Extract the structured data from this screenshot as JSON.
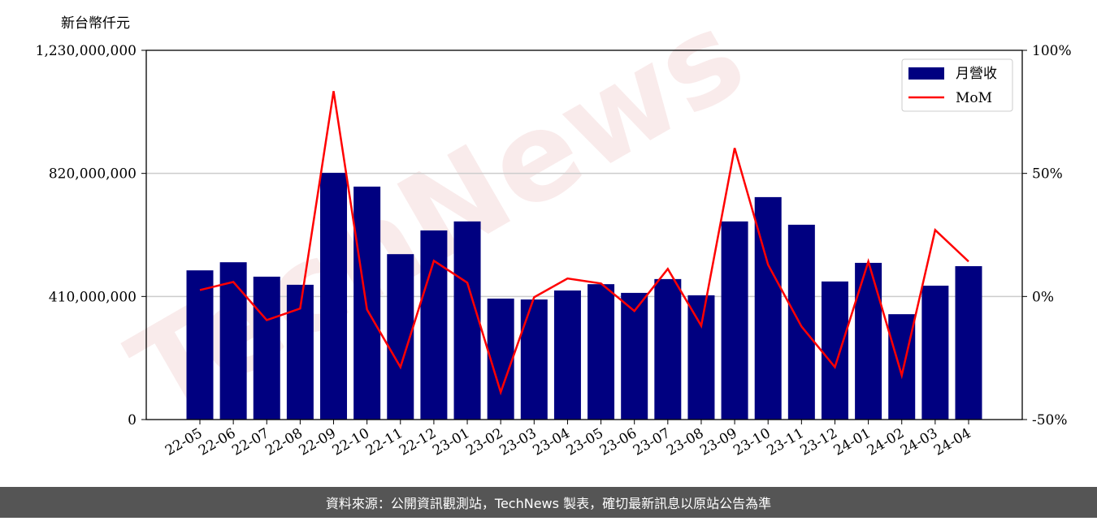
{
  "chart_data": {
    "type": "bar-line",
    "unit_label": "新台幣仟元",
    "watermark": "TechNews",
    "footer": "資料來源：公開資訊觀測站，TechNews 製表，確切最新訊息以原站公告為準",
    "categories": [
      "22-05",
      "22-06",
      "22-07",
      "22-08",
      "22-09",
      "22-10",
      "22-11",
      "22-12",
      "23-01",
      "23-02",
      "23-03",
      "23-04",
      "23-05",
      "23-06",
      "23-07",
      "23-08",
      "23-09",
      "23-10",
      "23-11",
      "23-12",
      "24-01",
      "24-02",
      "24-03",
      "24-04"
    ],
    "series": [
      {
        "name": "月營收",
        "color": "#000080",
        "type": "bar",
        "values": [
          497000000,
          524000000,
          476000000,
          449000000,
          822000000,
          776000000,
          551000000,
          630000000,
          660000000,
          403000000,
          400000000,
          430000000,
          451000000,
          422000000,
          468000000,
          414000000,
          660000000,
          741000000,
          649000000,
          460000000,
          522000000,
          351000000,
          446000000,
          511000000
        ]
      },
      {
        "name": "MoM",
        "color": "#ff0000",
        "type": "line",
        "axis": "y2",
        "values": [
          2.6,
          5.9,
          -9.6,
          -4.9,
          83.4,
          -5.3,
          -28.7,
          14.5,
          5.6,
          -38.9,
          -0.3,
          7.3,
          5.3,
          -5.9,
          11.2,
          -11.9,
          60.3,
          12.9,
          -12.2,
          -28.7,
          14.2,
          -32,
          27,
          14.2
        ]
      }
    ],
    "ylim": [
      0,
      1230000000
    ],
    "yticks": [
      {
        "value": 0,
        "label": "0"
      },
      {
        "value": 410000000,
        "label": "410,000,000"
      },
      {
        "value": 820000000,
        "label": "820,000,000"
      },
      {
        "value": 1230000000,
        "label": "1,230,000,000"
      }
    ],
    "y2lim": [
      -50,
      100
    ],
    "y2ticks": [
      {
        "value": -50,
        "label": "-50%"
      },
      {
        "value": 0,
        "label": "0%"
      },
      {
        "value": 50,
        "label": "50%"
      },
      {
        "value": 100,
        "label": "100%"
      }
    ],
    "grid": true,
    "legend": "upper right"
  }
}
